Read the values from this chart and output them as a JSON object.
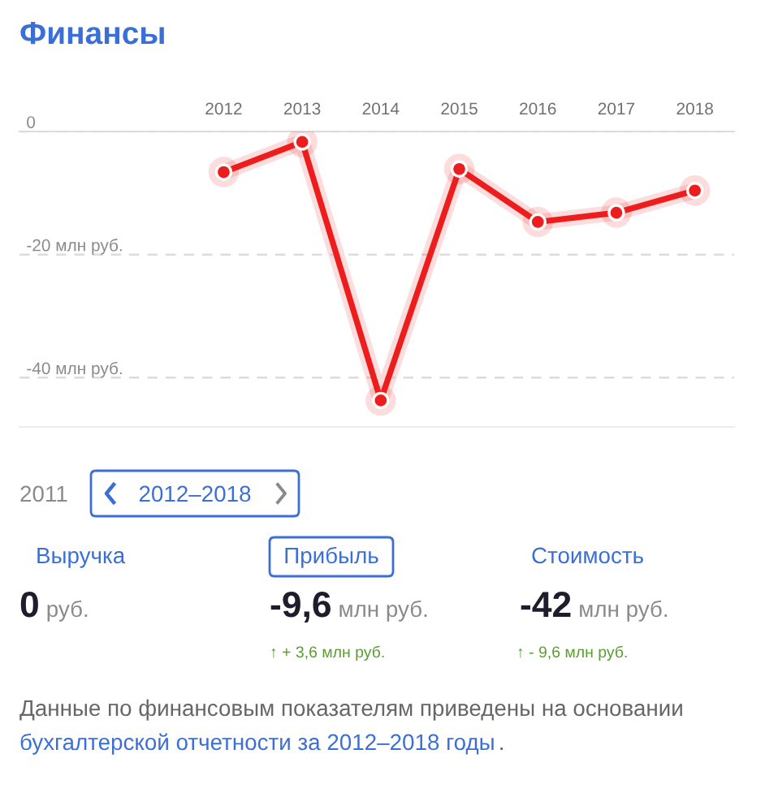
{
  "chart_data": [
    {
      "type": "line",
      "title": "Финансы",
      "categories": [
        "2012",
        "2013",
        "2014",
        "2015",
        "2016",
        "2017",
        "2018"
      ],
      "series": [
        {
          "color": "#ee1d1d",
          "values": [
            -6.6,
            -1.7,
            -43.7,
            -6.1,
            -14.7,
            -13.2,
            -9.6
          ]
        }
      ],
      "ylim": [
        -48,
        0
      ],
      "yticks": [
        0,
        {
          "value": -20,
          "label": "-20 млн руб."
        },
        {
          "value": -40,
          "label": "-40 млн руб."
        }
      ],
      "grid": "y",
      "marker": "circle",
      "line_style": "solid"
    },
    {
      "type": "other",
      "annotations": [
        "2011",
        "2012–2018",
        "Выручка",
        "Прибыль",
        "Стоимость",
        "0",
        "руб.",
        "-9,6",
        "млн руб.",
        "-42",
        "млн руб.",
        "↑ + 3,6 млн руб.",
        "↑ - 9,6 млн руб.",
        "Данные по финансовым показателям приведены на основании",
        "бухгалтерской отчетности за 2012–2018 годы",
        "."
      ]
    }
  ]
}
